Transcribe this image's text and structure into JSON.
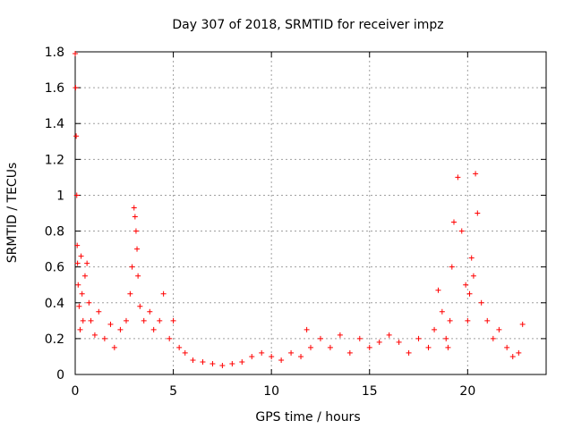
{
  "chart_data": {
    "type": "scatter",
    "title": "Day 307 of 2018, SRMTID for receiver impz",
    "xlabel": "GPS time / hours",
    "ylabel": "SRMTID / TECUs",
    "xlim": [
      0,
      24
    ],
    "ylim": [
      0,
      1.8
    ],
    "xticks": [
      0,
      5,
      10,
      15,
      20
    ],
    "xtick_labels": [
      "0",
      "5",
      "10",
      "15",
      "20"
    ],
    "yticks": [
      0,
      0.2,
      0.4,
      0.6,
      0.8,
      1,
      1.2,
      1.4,
      1.6,
      1.8
    ],
    "ytick_labels": [
      "0",
      "0.2",
      "0.4",
      "0.6",
      "0.8",
      "1",
      "1.2",
      "1.4",
      "1.6",
      "1.8"
    ],
    "grid": true,
    "marker": "+",
    "color": "#ff0000",
    "series": [
      {
        "name": "SRMTID",
        "x": [
          0.0,
          0.02,
          0.05,
          0.08,
          0.1,
          0.12,
          0.15,
          0.2,
          0.25,
          0.3,
          0.35,
          0.4,
          0.5,
          0.6,
          0.7,
          0.8,
          1.0,
          1.2,
          1.5,
          1.8,
          2.0,
          2.3,
          2.6,
          2.8,
          2.9,
          3.0,
          3.05,
          3.1,
          3.15,
          3.2,
          3.3,
          3.5,
          3.8,
          4.0,
          4.3,
          4.5,
          4.8,
          5.0,
          5.3,
          5.6,
          6.0,
          6.5,
          7.0,
          7.5,
          8.0,
          8.5,
          9.0,
          9.5,
          10.0,
          10.5,
          11.0,
          11.5,
          11.8,
          12.0,
          12.5,
          13.0,
          13.5,
          14.0,
          14.5,
          15.0,
          15.5,
          16.0,
          16.5,
          17.0,
          17.5,
          18.0,
          18.3,
          18.5,
          18.7,
          18.9,
          19.0,
          19.1,
          19.2,
          19.3,
          19.5,
          19.7,
          19.9,
          20.0,
          20.1,
          20.2,
          20.3,
          20.4,
          20.5,
          20.7,
          21.0,
          21.3,
          21.6,
          22.0,
          22.3,
          22.6,
          22.8
        ],
        "y": [
          1.79,
          1.6,
          1.33,
          1.0,
          0.72,
          0.62,
          0.5,
          0.38,
          0.25,
          0.66,
          0.45,
          0.3,
          0.55,
          0.62,
          0.4,
          0.3,
          0.22,
          0.35,
          0.2,
          0.28,
          0.15,
          0.25,
          0.3,
          0.45,
          0.6,
          0.93,
          0.88,
          0.8,
          0.7,
          0.55,
          0.38,
          0.3,
          0.35,
          0.25,
          0.3,
          0.45,
          0.2,
          0.3,
          0.15,
          0.12,
          0.08,
          0.07,
          0.06,
          0.05,
          0.06,
          0.07,
          0.1,
          0.12,
          0.1,
          0.08,
          0.12,
          0.1,
          0.25,
          0.15,
          0.2,
          0.15,
          0.22,
          0.12,
          0.2,
          0.15,
          0.18,
          0.22,
          0.18,
          0.12,
          0.2,
          0.15,
          0.25,
          0.47,
          0.35,
          0.2,
          0.15,
          0.3,
          0.6,
          0.85,
          1.1,
          0.8,
          0.5,
          0.3,
          0.45,
          0.65,
          0.55,
          1.12,
          0.9,
          0.4,
          0.3,
          0.2,
          0.25,
          0.15,
          0.1,
          0.12,
          0.28
        ]
      }
    ]
  }
}
